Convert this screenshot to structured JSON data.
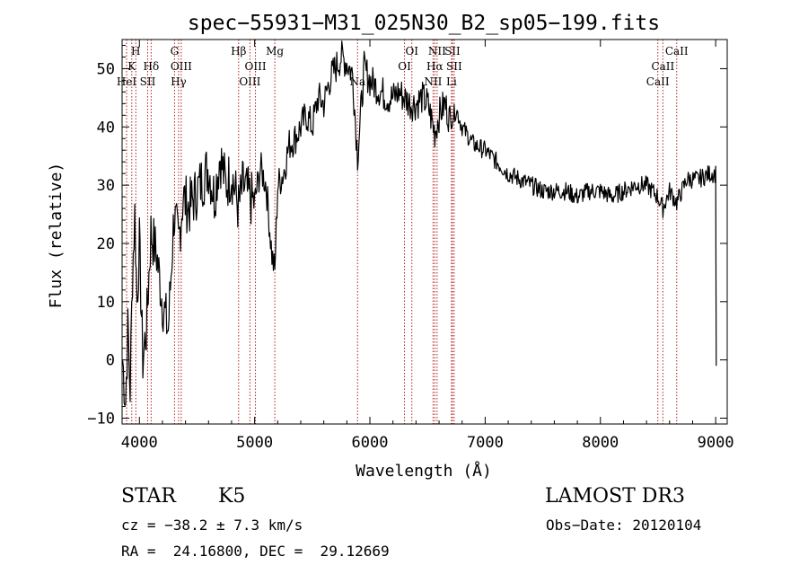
{
  "chart_data": {
    "type": "line",
    "title": "spec−55931−M31_025N30_B2_sp05−199.fits",
    "xlabel": "Wavelength (Å)",
    "ylabel": "Flux (relative)",
    "xlim": [
      3850,
      9100
    ],
    "ylim": [
      -11,
      55
    ],
    "xticks": [
      4000,
      5000,
      6000,
      7000,
      8000,
      9000
    ],
    "xtick_labels": [
      "4000",
      "5000",
      "6000",
      "7000",
      "8000",
      "9000"
    ],
    "yticks": [
      -10,
      0,
      10,
      20,
      30,
      40,
      50
    ],
    "ytick_labels": [
      "−10",
      "0",
      "10",
      "20",
      "30",
      "40",
      "50"
    ],
    "series": [
      {
        "name": "spectrum",
        "x": [
          3855,
          3880,
          3900,
          3920,
          3940,
          3960,
          3980,
          4000,
          4030,
          4060,
          4100,
          4150,
          4200,
          4250,
          4300,
          4340,
          4380,
          4430,
          4500,
          4550,
          4600,
          4650,
          4700,
          4750,
          4800,
          4860,
          4900,
          4950,
          5000,
          5050,
          5100,
          5150,
          5175,
          5200,
          5250,
          5300,
          5350,
          5400,
          5450,
          5500,
          5550,
          5600,
          5650,
          5700,
          5750,
          5800,
          5850,
          5893,
          5950,
          6000,
          6050,
          6100,
          6150,
          6200,
          6250,
          6300,
          6350,
          6400,
          6450,
          6500,
          6563,
          6600,
          6650,
          6700,
          6750,
          6800,
          6900,
          7000,
          7100,
          7200,
          7300,
          7400,
          7500,
          7600,
          7700,
          7800,
          7900,
          8000,
          8100,
          8200,
          8300,
          8400,
          8498,
          8542,
          8600,
          8662,
          8750,
          8850,
          8950,
          9000,
          9005
        ],
        "y": [
          0,
          -7,
          5,
          -5,
          15,
          25,
          10,
          20,
          0,
          5,
          22,
          18,
          10,
          5,
          25,
          20,
          28,
          26,
          29,
          31,
          33,
          28,
          35,
          30,
          32,
          26,
          30,
          28,
          27,
          33,
          30,
          18,
          15,
          30,
          32,
          37,
          38,
          40,
          42,
          40,
          45,
          44,
          48,
          50,
          52,
          51,
          49,
          35,
          50,
          48,
          47,
          46,
          45,
          45,
          46,
          45,
          44,
          44,
          45,
          44,
          39,
          42,
          44,
          41,
          43,
          40,
          37,
          36,
          34,
          32,
          31,
          30,
          29,
          29,
          29,
          28,
          29,
          29,
          28,
          29,
          30,
          30,
          28,
          26,
          29,
          27,
          31,
          31,
          32,
          32,
          -1
        ]
      }
    ],
    "lines": [
      {
        "name": "K",
        "wavelength": 3934,
        "row": 2
      },
      {
        "name": "H",
        "wavelength": 3969,
        "row": 1
      },
      {
        "name": "HeI",
        "wavelength": 3889,
        "row": 3
      },
      {
        "name": "SII",
        "wavelength": 4072,
        "row": 3
      },
      {
        "name": "Hδ",
        "wavelength": 4102,
        "row": 2
      },
      {
        "name": "G",
        "wavelength": 4305,
        "row": 1
      },
      {
        "name": "OIII",
        "wavelength": 4363,
        "row": 2
      },
      {
        "name": "Hγ",
        "wavelength": 4340,
        "row": 3
      },
      {
        "name": "Hβ",
        "wavelength": 4861,
        "row": 1
      },
      {
        "name": "OIII",
        "wavelength": 4959,
        "row": 3
      },
      {
        "name": "OIII",
        "wavelength": 5007,
        "row": 2
      },
      {
        "name": "Mg",
        "wavelength": 5175,
        "row": 1
      },
      {
        "name": "Na",
        "wavelength": 5893,
        "row": 3
      },
      {
        "name": "OI",
        "wavelength": 6300,
        "row": 2
      },
      {
        "name": "OI",
        "wavelength": 6364,
        "row": 1
      },
      {
        "name": "NII",
        "wavelength": 6548,
        "row": 3
      },
      {
        "name": "NII",
        "wavelength": 6583,
        "row": 1
      },
      {
        "name": "Hα",
        "wavelength": 6563,
        "row": 2
      },
      {
        "name": "SII",
        "wavelength": 6716,
        "row": 1
      },
      {
        "name": "SII",
        "wavelength": 6731,
        "row": 2
      },
      {
        "name": "Li",
        "wavelength": 6708,
        "row": 3
      },
      {
        "name": "CaII",
        "wavelength": 8498,
        "row": 3
      },
      {
        "name": "CaII",
        "wavelength": 8542,
        "row": 2
      },
      {
        "name": "CaII",
        "wavelength": 8662,
        "row": 1
      }
    ]
  },
  "info": {
    "object_class": "STAR",
    "subclass": "K5",
    "survey": "LAMOST DR3",
    "redshift": "cz = −38.2 ± 7.3 km/s",
    "obs_date": "Obs−Date: 20120104",
    "coords": "RA =  24.16800, DEC =  29.12669"
  },
  "colors": {
    "line_marker": "#b22222",
    "spectrum": "#000000"
  }
}
